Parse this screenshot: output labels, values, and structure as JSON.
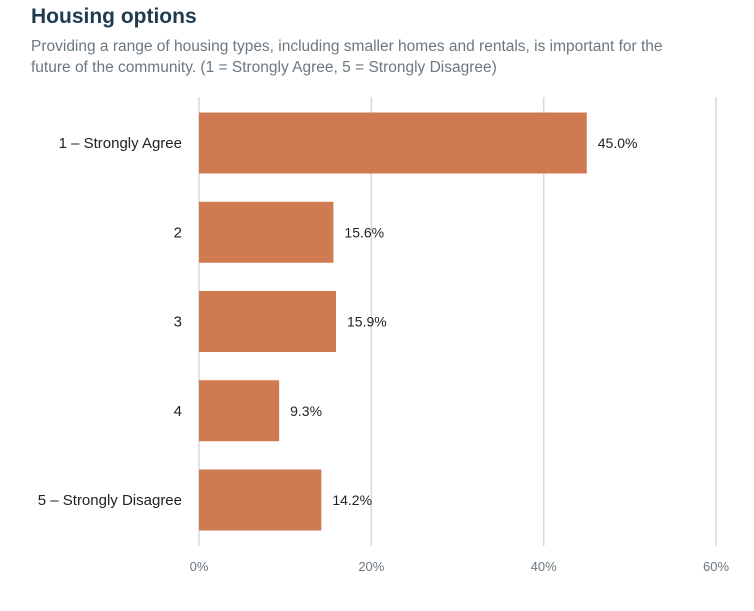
{
  "header": {
    "title": "Housing options",
    "subtitle_line1": "Providing a range of housing types, including smaller homes and rentals, is important for the",
    "subtitle_line2": "future of the community. (1 = Strongly Agree, 5 = Strongly Disagree)"
  },
  "colors": {
    "bar": "#cf7a50",
    "title": "#1f3b50",
    "subtitle": "#6b7880",
    "grid": "#d9d9d9"
  },
  "chart_data": {
    "type": "bar",
    "orientation": "horizontal",
    "title": "Housing options",
    "subtitle": "Providing a range of housing types, including smaller homes and rentals, is important for the future of the community. (1 = Strongly Agree, 5 = Strongly Disagree)",
    "categories": [
      "1 – Strongly Agree",
      "2",
      "3",
      "4",
      "5 – Strongly Disagree"
    ],
    "values": [
      45.0,
      15.6,
      15.9,
      9.3,
      14.2
    ],
    "value_labels": [
      "45.0%",
      "15.6%",
      "15.9%",
      "9.3%",
      "14.2%"
    ],
    "xlim": [
      0,
      60
    ],
    "xticks": [
      0,
      20,
      40,
      60
    ],
    "xtick_labels": [
      "0%",
      "20%",
      "40%",
      "60%"
    ],
    "xlabel": "",
    "ylabel": "",
    "grid": "vertical",
    "legend": "none"
  }
}
